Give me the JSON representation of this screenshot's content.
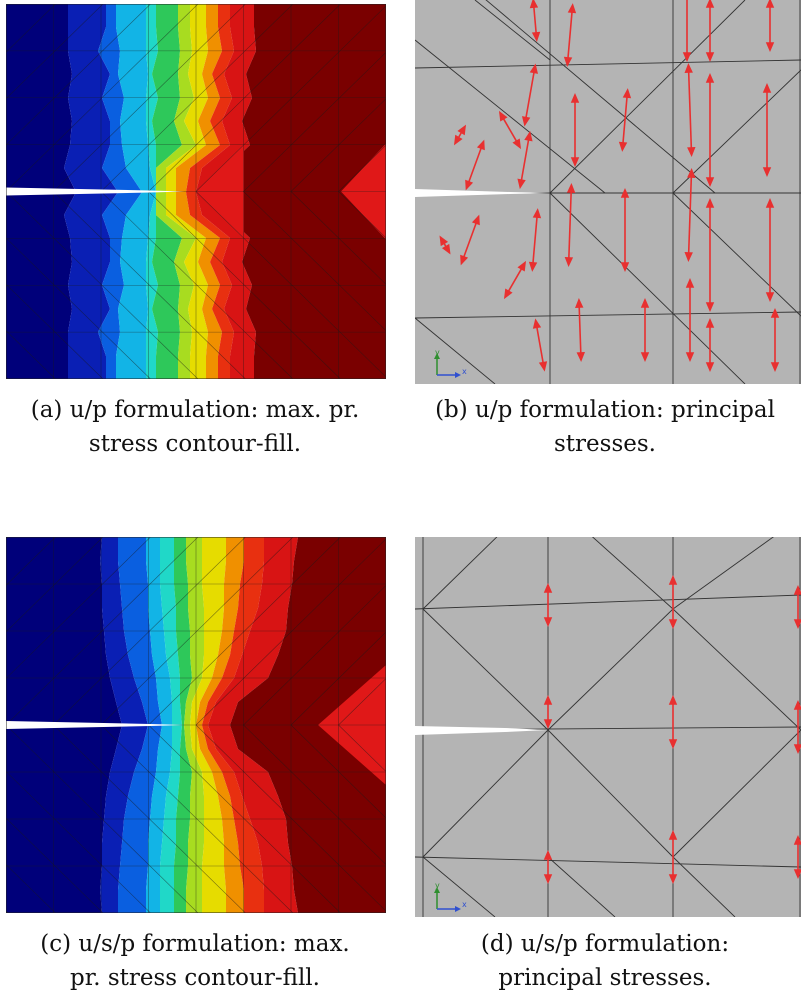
{
  "figure": {
    "panels": [
      {
        "id": "a",
        "kind": "contour-fill",
        "caption_line1": "(a) u/p formulation: max. pr.",
        "caption_line2": "stress contour-fill."
      },
      {
        "id": "b",
        "kind": "principal-stresses",
        "caption_line1": "(b) u/p formulation: principal",
        "caption_line2": "stresses.",
        "axis_y": "y",
        "axis_x": "x"
      },
      {
        "id": "c",
        "kind": "contour-fill",
        "caption_line1": "(c) u/s/p formulation: max.",
        "caption_line2": "pr. stress contour-fill."
      },
      {
        "id": "d",
        "kind": "principal-stresses",
        "caption_line1": "(d) u/s/p formulation:",
        "caption_line2": "principal stresses.",
        "axis_y": "y",
        "axis_x": "x"
      }
    ],
    "colors": {
      "contour_bands": [
        "#00007a",
        "#0a1fb4",
        "#0a5fe0",
        "#12b4e6",
        "#20d8c8",
        "#2ec85a",
        "#a8dc20",
        "#e6dc00",
        "#f09000",
        "#e83010",
        "#d81414",
        "#7a0000"
      ],
      "mesh_background": "#b4b4b4",
      "mesh_line": "#333333",
      "arrow": "#e83030",
      "crack": "#ffffff",
      "axis_y": "#2f8f2f",
      "axis_x": "#3050d0"
    }
  }
}
